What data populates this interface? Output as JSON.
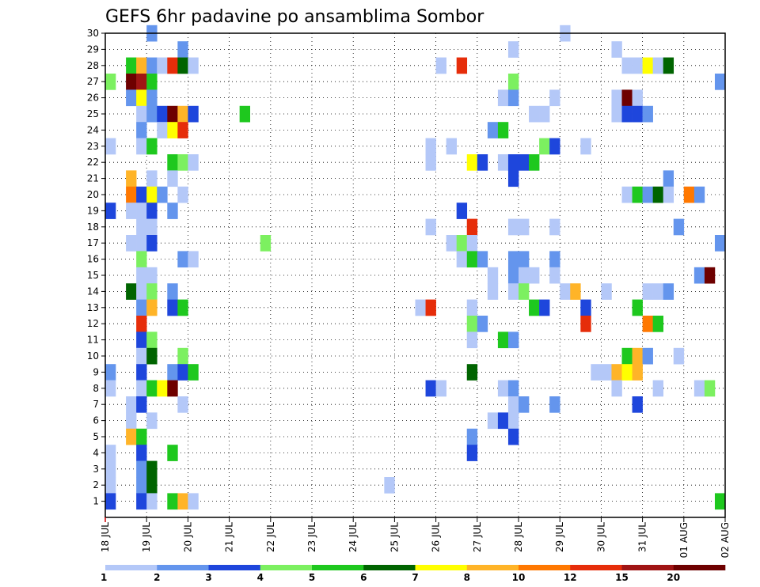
{
  "chart_data": {
    "type": "heatmap",
    "title": "GEFS 6hr padavine po ansamblima Sombor",
    "xlabel": "",
    "ylabel": "",
    "x_unit": "6-hour step from 18 JUL 00Z",
    "x_ticks": [
      "18 JUL",
      "19 JUL",
      "20 JUL",
      "21 JUL",
      "22 JUL",
      "23 JUL",
      "24 JUL",
      "25 JUL",
      "26 JUL",
      "27 JUL",
      "28 JUL",
      "29 JUL",
      "30 JUL",
      "31 JUL",
      "01 AUG",
      "02 AUG"
    ],
    "y_ticks": [
      1,
      2,
      3,
      4,
      5,
      6,
      7,
      8,
      9,
      10,
      11,
      12,
      13,
      14,
      15,
      16,
      17,
      18,
      19,
      20,
      21,
      22,
      23,
      24,
      25,
      26,
      27,
      28,
      29,
      30
    ],
    "xlim": [
      0,
      60
    ],
    "ylim": [
      0,
      30
    ],
    "grid": true,
    "legend": {
      "placement": "bottom",
      "levels": [
        "1",
        "2",
        "3",
        "4",
        "5",
        "6",
        "7",
        "8",
        "10",
        "12",
        "15",
        "20"
      ],
      "colors": [
        "#b4c8f8",
        "#6495ed",
        "#1e46dc",
        "#7cf060",
        "#1ec81e",
        "#006400",
        "#ffff00",
        "#ffb428",
        "#ff7800",
        "#e62d0a",
        "#a01414",
        "#6e0000"
      ]
    },
    "cells": [
      [
        4,
        30,
        1
      ],
      [
        44,
        30,
        0
      ],
      [
        7,
        29,
        1
      ],
      [
        39,
        29,
        0
      ],
      [
        49,
        29,
        0
      ],
      [
        2,
        28,
        4
      ],
      [
        3,
        28,
        7
      ],
      [
        4,
        28,
        1
      ],
      [
        5,
        28,
        0
      ],
      [
        6,
        28,
        9
      ],
      [
        7,
        28,
        5
      ],
      [
        8,
        28,
        0
      ],
      [
        32,
        28,
        0
      ],
      [
        34,
        28,
        9
      ],
      [
        50,
        28,
        0
      ],
      [
        51,
        28,
        0
      ],
      [
        52,
        28,
        6
      ],
      [
        53,
        28,
        0
      ],
      [
        54,
        28,
        5
      ],
      [
        0,
        27,
        3
      ],
      [
        2,
        27,
        11
      ],
      [
        3,
        27,
        10
      ],
      [
        4,
        27,
        4
      ],
      [
        39,
        27,
        3
      ],
      [
        59,
        27,
        1
      ],
      [
        2,
        26,
        1
      ],
      [
        3,
        26,
        6
      ],
      [
        4,
        26,
        1
      ],
      [
        38,
        26,
        0
      ],
      [
        39,
        26,
        1
      ],
      [
        43,
        26,
        0
      ],
      [
        49,
        26,
        0
      ],
      [
        50,
        26,
        11
      ],
      [
        51,
        26,
        0
      ],
      [
        3,
        25,
        0
      ],
      [
        4,
        25,
        1
      ],
      [
        5,
        25,
        2
      ],
      [
        6,
        25,
        11
      ],
      [
        7,
        25,
        7
      ],
      [
        8,
        25,
        2
      ],
      [
        13,
        25,
        4
      ],
      [
        41,
        25,
        0
      ],
      [
        42,
        25,
        0
      ],
      [
        49,
        25,
        0
      ],
      [
        50,
        25,
        2
      ],
      [
        51,
        25,
        2
      ],
      [
        52,
        25,
        1
      ],
      [
        3,
        24,
        1
      ],
      [
        5,
        24,
        0
      ],
      [
        6,
        24,
        6
      ],
      [
        7,
        24,
        9
      ],
      [
        37,
        24,
        1
      ],
      [
        38,
        24,
        4
      ],
      [
        0,
        23,
        0
      ],
      [
        3,
        23,
        0
      ],
      [
        4,
        23,
        4
      ],
      [
        31,
        23,
        0
      ],
      [
        33,
        23,
        0
      ],
      [
        42,
        23,
        3
      ],
      [
        43,
        23,
        2
      ],
      [
        46,
        23,
        0
      ],
      [
        6,
        22,
        4
      ],
      [
        7,
        22,
        3
      ],
      [
        8,
        22,
        0
      ],
      [
        31,
        22,
        0
      ],
      [
        35,
        22,
        6
      ],
      [
        36,
        22,
        2
      ],
      [
        38,
        22,
        0
      ],
      [
        39,
        22,
        2
      ],
      [
        40,
        22,
        2
      ],
      [
        41,
        22,
        4
      ],
      [
        2,
        21,
        7
      ],
      [
        4,
        21,
        0
      ],
      [
        6,
        21,
        0
      ],
      [
        39,
        21,
        2
      ],
      [
        54,
        21,
        1
      ],
      [
        2,
        20,
        8
      ],
      [
        3,
        20,
        2
      ],
      [
        4,
        20,
        6
      ],
      [
        5,
        20,
        1
      ],
      [
        7,
        20,
        0
      ],
      [
        50,
        20,
        0
      ],
      [
        51,
        20,
        4
      ],
      [
        52,
        20,
        1
      ],
      [
        53,
        20,
        5
      ],
      [
        54,
        20,
        0
      ],
      [
        56,
        20,
        8
      ],
      [
        57,
        20,
        1
      ],
      [
        0,
        19,
        2
      ],
      [
        2,
        19,
        0
      ],
      [
        3,
        19,
        0
      ],
      [
        4,
        19,
        2
      ],
      [
        6,
        19,
        1
      ],
      [
        34,
        19,
        2
      ],
      [
        3,
        18,
        0
      ],
      [
        4,
        18,
        0
      ],
      [
        31,
        18,
        0
      ],
      [
        35,
        18,
        9
      ],
      [
        39,
        18,
        0
      ],
      [
        40,
        18,
        0
      ],
      [
        43,
        18,
        0
      ],
      [
        55,
        18,
        1
      ],
      [
        2,
        17,
        0
      ],
      [
        3,
        17,
        0
      ],
      [
        4,
        17,
        2
      ],
      [
        15,
        17,
        3
      ],
      [
        33,
        17,
        0
      ],
      [
        34,
        17,
        3
      ],
      [
        35,
        17,
        0
      ],
      [
        59,
        17,
        1
      ],
      [
        3,
        16,
        3
      ],
      [
        7,
        16,
        1
      ],
      [
        8,
        16,
        0
      ],
      [
        34,
        16,
        0
      ],
      [
        35,
        16,
        4
      ],
      [
        36,
        16,
        1
      ],
      [
        39,
        16,
        1
      ],
      [
        40,
        16,
        1
      ],
      [
        43,
        16,
        1
      ],
      [
        3,
        15,
        0
      ],
      [
        4,
        15,
        0
      ],
      [
        37,
        15,
        0
      ],
      [
        39,
        15,
        1
      ],
      [
        40,
        15,
        0
      ],
      [
        41,
        15,
        0
      ],
      [
        43,
        15,
        0
      ],
      [
        57,
        15,
        1
      ],
      [
        58,
        15,
        11
      ],
      [
        2,
        14,
        5
      ],
      [
        3,
        14,
        0
      ],
      [
        4,
        14,
        3
      ],
      [
        6,
        14,
        1
      ],
      [
        37,
        14,
        0
      ],
      [
        39,
        14,
        0
      ],
      [
        40,
        14,
        3
      ],
      [
        44,
        14,
        0
      ],
      [
        45,
        14,
        7
      ],
      [
        48,
        14,
        0
      ],
      [
        52,
        14,
        0
      ],
      [
        53,
        14,
        0
      ],
      [
        54,
        14,
        1
      ],
      [
        3,
        13,
        1
      ],
      [
        4,
        13,
        7
      ],
      [
        6,
        13,
        2
      ],
      [
        7,
        13,
        4
      ],
      [
        30,
        13,
        0
      ],
      [
        31,
        13,
        9
      ],
      [
        35,
        13,
        0
      ],
      [
        41,
        13,
        4
      ],
      [
        42,
        13,
        2
      ],
      [
        46,
        13,
        2
      ],
      [
        51,
        13,
        4
      ],
      [
        3,
        12,
        9
      ],
      [
        35,
        12,
        3
      ],
      [
        36,
        12,
        1
      ],
      [
        46,
        12,
        9
      ],
      [
        52,
        12,
        8
      ],
      [
        53,
        12,
        4
      ],
      [
        3,
        11,
        2
      ],
      [
        4,
        11,
        3
      ],
      [
        35,
        11,
        0
      ],
      [
        38,
        11,
        4
      ],
      [
        39,
        11,
        1
      ],
      [
        3,
        10,
        0
      ],
      [
        4,
        10,
        5
      ],
      [
        7,
        10,
        3
      ],
      [
        50,
        10,
        4
      ],
      [
        51,
        10,
        7
      ],
      [
        52,
        10,
        1
      ],
      [
        55,
        10,
        0
      ],
      [
        0,
        9,
        1
      ],
      [
        3,
        9,
        2
      ],
      [
        6,
        9,
        1
      ],
      [
        7,
        9,
        2
      ],
      [
        8,
        9,
        4
      ],
      [
        35,
        9,
        5
      ],
      [
        47,
        9,
        0
      ],
      [
        48,
        9,
        0
      ],
      [
        49,
        9,
        7
      ],
      [
        50,
        9,
        6
      ],
      [
        51,
        9,
        7
      ],
      [
        0,
        8,
        0
      ],
      [
        3,
        8,
        0
      ],
      [
        4,
        8,
        4
      ],
      [
        5,
        8,
        6
      ],
      [
        6,
        8,
        11
      ],
      [
        31,
        8,
        2
      ],
      [
        32,
        8,
        0
      ],
      [
        38,
        8,
        0
      ],
      [
        39,
        8,
        1
      ],
      [
        49,
        8,
        0
      ],
      [
        53,
        8,
        0
      ],
      [
        57,
        8,
        0
      ],
      [
        58,
        8,
        3
      ],
      [
        2,
        7,
        0
      ],
      [
        3,
        7,
        2
      ],
      [
        7,
        7,
        0
      ],
      [
        39,
        7,
        0
      ],
      [
        40,
        7,
        1
      ],
      [
        43,
        7,
        1
      ],
      [
        51,
        7,
        2
      ],
      [
        2,
        6,
        0
      ],
      [
        4,
        6,
        0
      ],
      [
        37,
        6,
        0
      ],
      [
        38,
        6,
        2
      ],
      [
        39,
        6,
        0
      ],
      [
        2,
        5,
        7
      ],
      [
        3,
        5,
        4
      ],
      [
        35,
        5,
        1
      ],
      [
        39,
        5,
        2
      ],
      [
        0,
        4,
        0
      ],
      [
        3,
        4,
        2
      ],
      [
        6,
        4,
        4
      ],
      [
        35,
        4,
        2
      ],
      [
        0,
        3,
        0
      ],
      [
        3,
        3,
        1
      ],
      [
        4,
        3,
        5
      ],
      [
        0,
        2,
        0
      ],
      [
        3,
        2,
        1
      ],
      [
        4,
        2,
        5
      ],
      [
        27,
        2,
        0
      ],
      [
        0,
        1,
        2
      ],
      [
        3,
        1,
        2
      ],
      [
        4,
        1,
        0
      ],
      [
        6,
        1,
        4
      ],
      [
        7,
        1,
        7
      ],
      [
        8,
        1,
        0
      ],
      [
        59,
        1,
        4
      ]
    ]
  }
}
